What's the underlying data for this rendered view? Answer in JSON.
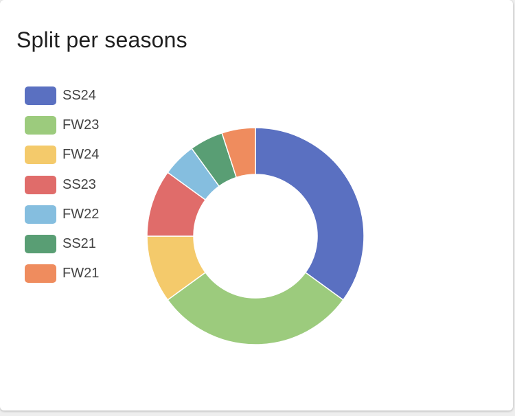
{
  "card": {
    "title": "Split per seasons"
  },
  "chart_data": {
    "type": "pie",
    "variant": "doughnut",
    "title": "Split per seasons",
    "legend_position": "left",
    "categories": [
      "SS24",
      "FW23",
      "FW24",
      "SS23",
      "FW22",
      "SS21",
      "FW21"
    ],
    "values": [
      35,
      30,
      10,
      10,
      5,
      5,
      5
    ],
    "colors": [
      "#5a70c1",
      "#9ccb7d",
      "#f4ca6b",
      "#e06c6a",
      "#85bedf",
      "#599e74",
      "#ef8c5e"
    ]
  }
}
